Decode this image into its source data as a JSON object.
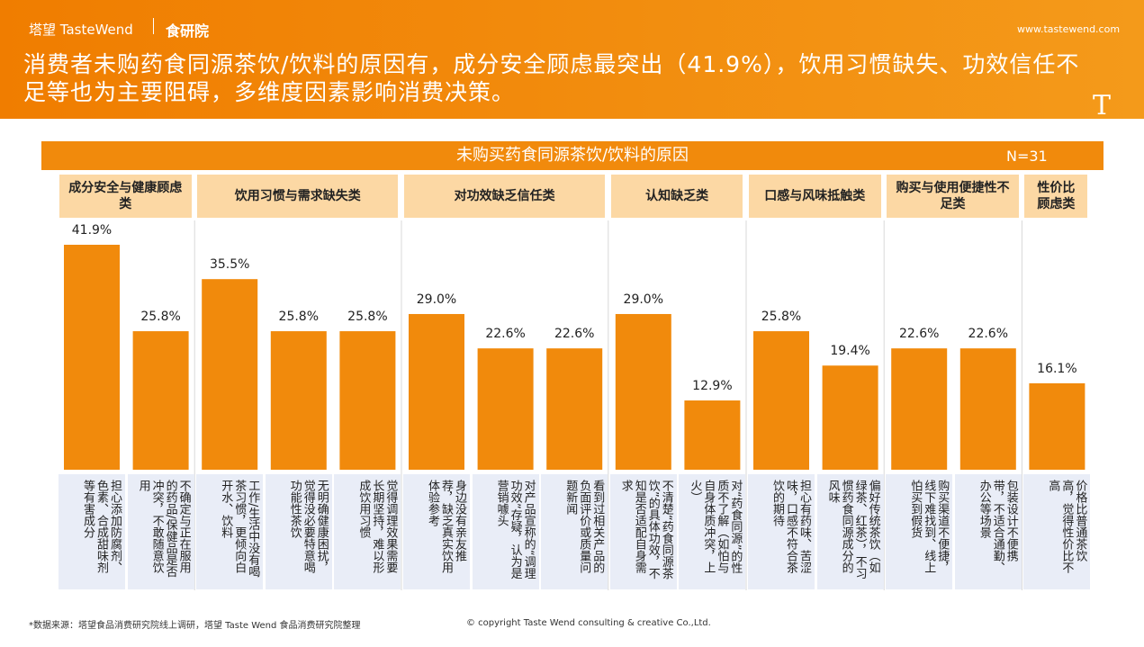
{
  "header": {
    "brand": "塔望 TasteWend",
    "brand2": "食研院",
    "url": "www.tastewend.com",
    "title": "消费者未购药食同源茶饮/饮料的原因有，成分安全顾虑最突出（41.9%），饮用习惯缺失、功效信任不足等也为主要阻碍，多维度因素影响消费决策。"
  },
  "chart_data": {
    "type": "bar",
    "title": "未购买药食同源茶饮/饮料的原因",
    "note": "N=31",
    "color": "#f18a0c",
    "groups": [
      {
        "name": "成分安全与健康顾虑类",
        "categories": [
          "担心添加防腐剂、色素、合成甜味剂等有害成分",
          "不确定与正在服用的药品/保健品是否冲突，不敢随意饮用"
        ],
        "values": [
          41.9,
          25.8
        ],
        "value_labels": [
          "41.9%",
          "25.8%"
        ]
      },
      {
        "name": "饮用习惯与需求缺失类",
        "categories": [
          "工作/生活中没有喝茶习惯，更倾向白开水、饮料",
          "无明确健康困扰，觉得没必要特意喝功能性茶饮",
          "觉得调理效果需要长期坚持，难以形成饮用习惯"
        ],
        "values": [
          35.5,
          25.8,
          25.8
        ],
        "value_labels": [
          "35.5%",
          "25.8%",
          "25.8%"
        ]
      },
      {
        "name": "对功效缺乏信任类",
        "categories": [
          "身边没有亲友推荐，缺乏真实饮用体验参考",
          "对产品宣称的“调理功效”存疑，认为是营销噱头",
          "看到过相关产品的负面评价或质量问题新闻"
        ],
        "values": [
          29.0,
          22.6,
          22.6
        ],
        "value_labels": [
          "29.0%",
          "22.6%",
          "22.6%"
        ]
      },
      {
        "name": "认知缺乏类",
        "categories": [
          "不清楚“药食同源茶饮”的具体功效，不知是否适配自身需求",
          "对“药食同源”的性质不了解（如怕与自身体质冲突，上火）"
        ],
        "values": [
          29.0,
          12.9
        ],
        "value_labels": [
          "29.0%",
          "12.9%"
        ]
      },
      {
        "name": "口感与风味抵触类",
        "categories": [
          "担心有药味、苦涩味，口感不符合茶饮的期待",
          "偏好传统茶饮（如绿茶、红茶），不习惯药食同源成分的风味"
        ],
        "values": [
          25.8,
          19.4
        ],
        "value_labels": [
          "25.8%",
          "19.4%"
        ]
      },
      {
        "name": "购买与使用便捷性不足类",
        "categories": [
          "购买渠道不便捷，线下难找到、线上怕买到假货",
          "包装设计不便携带，不适合通勤、办公等场景"
        ],
        "values": [
          22.6,
          22.6
        ],
        "value_labels": [
          "22.6%",
          "22.6%"
        ]
      },
      {
        "name": "性价比顾虑类",
        "categories": [
          "价格比普通茶饮高，觉得性价比不高"
        ],
        "values": [
          16.1
        ],
        "value_labels": [
          "16.1%"
        ]
      }
    ]
  },
  "footer": {
    "source": "*数据来源：塔望食品消费研究院线上调研，塔望 Taste Wend 食品消费研究院整理",
    "copyright": "© copyright Taste Wend consulting & creative Co.,Ltd."
  }
}
